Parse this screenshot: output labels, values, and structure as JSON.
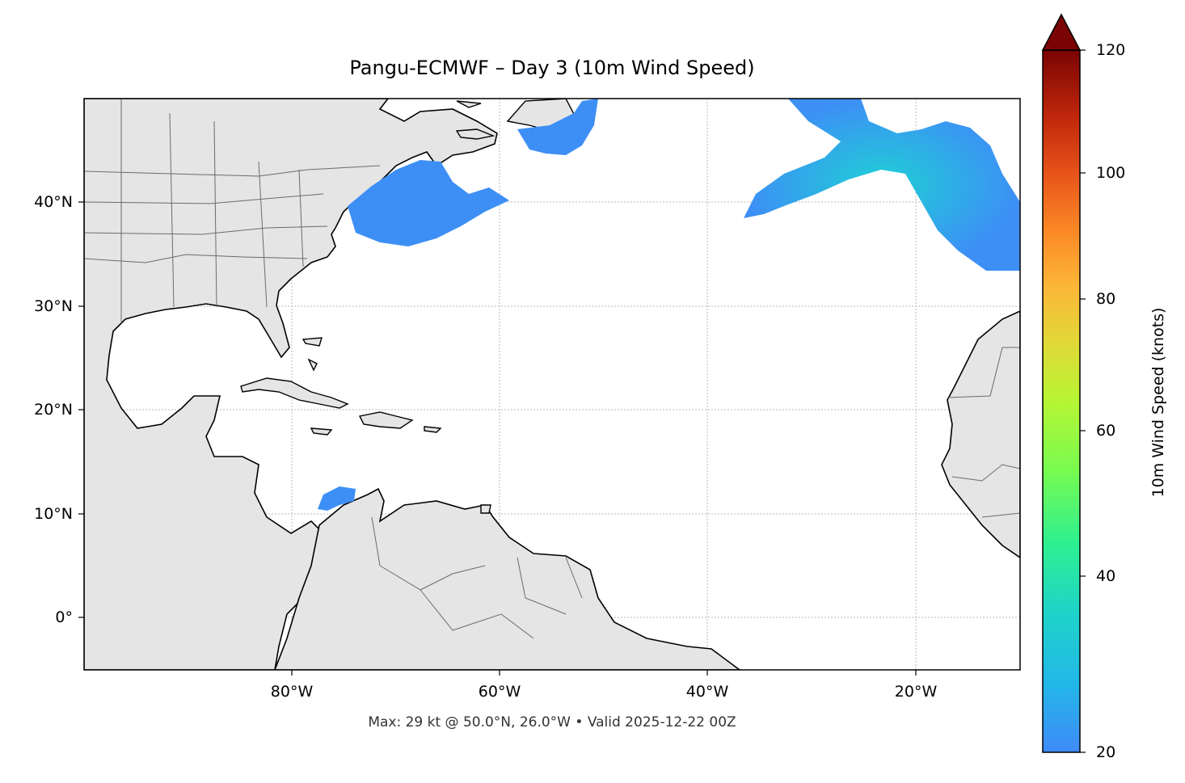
{
  "title": "Pangu-ECMWF – Day 3 (10m Wind Speed)",
  "footer": "Max: 29 kt @ 50.0°N, 26.0°W • Valid 2025-12-22 00Z",
  "map": {
    "lat_labels": [
      "40°N",
      "30°N",
      "20°N",
      "10°N",
      "0°"
    ],
    "lon_labels": [
      "80°W",
      "60°W",
      "40°W",
      "20°W"
    ],
    "colors": {
      "land": "#e5e5e5",
      "coast": "#000000",
      "borders": "#6b6b6b",
      "grid": "#b0b0b0",
      "wind": "#3d8ff5",
      "wind_core": "#22c3e0"
    }
  },
  "colorbar": {
    "label": "10m Wind Speed (knots)",
    "ticks": [
      "120",
      "100",
      "80",
      "60",
      "40",
      "20"
    ],
    "min": 20,
    "max": 120,
    "extend": "max",
    "colormap": "turbo"
  }
}
